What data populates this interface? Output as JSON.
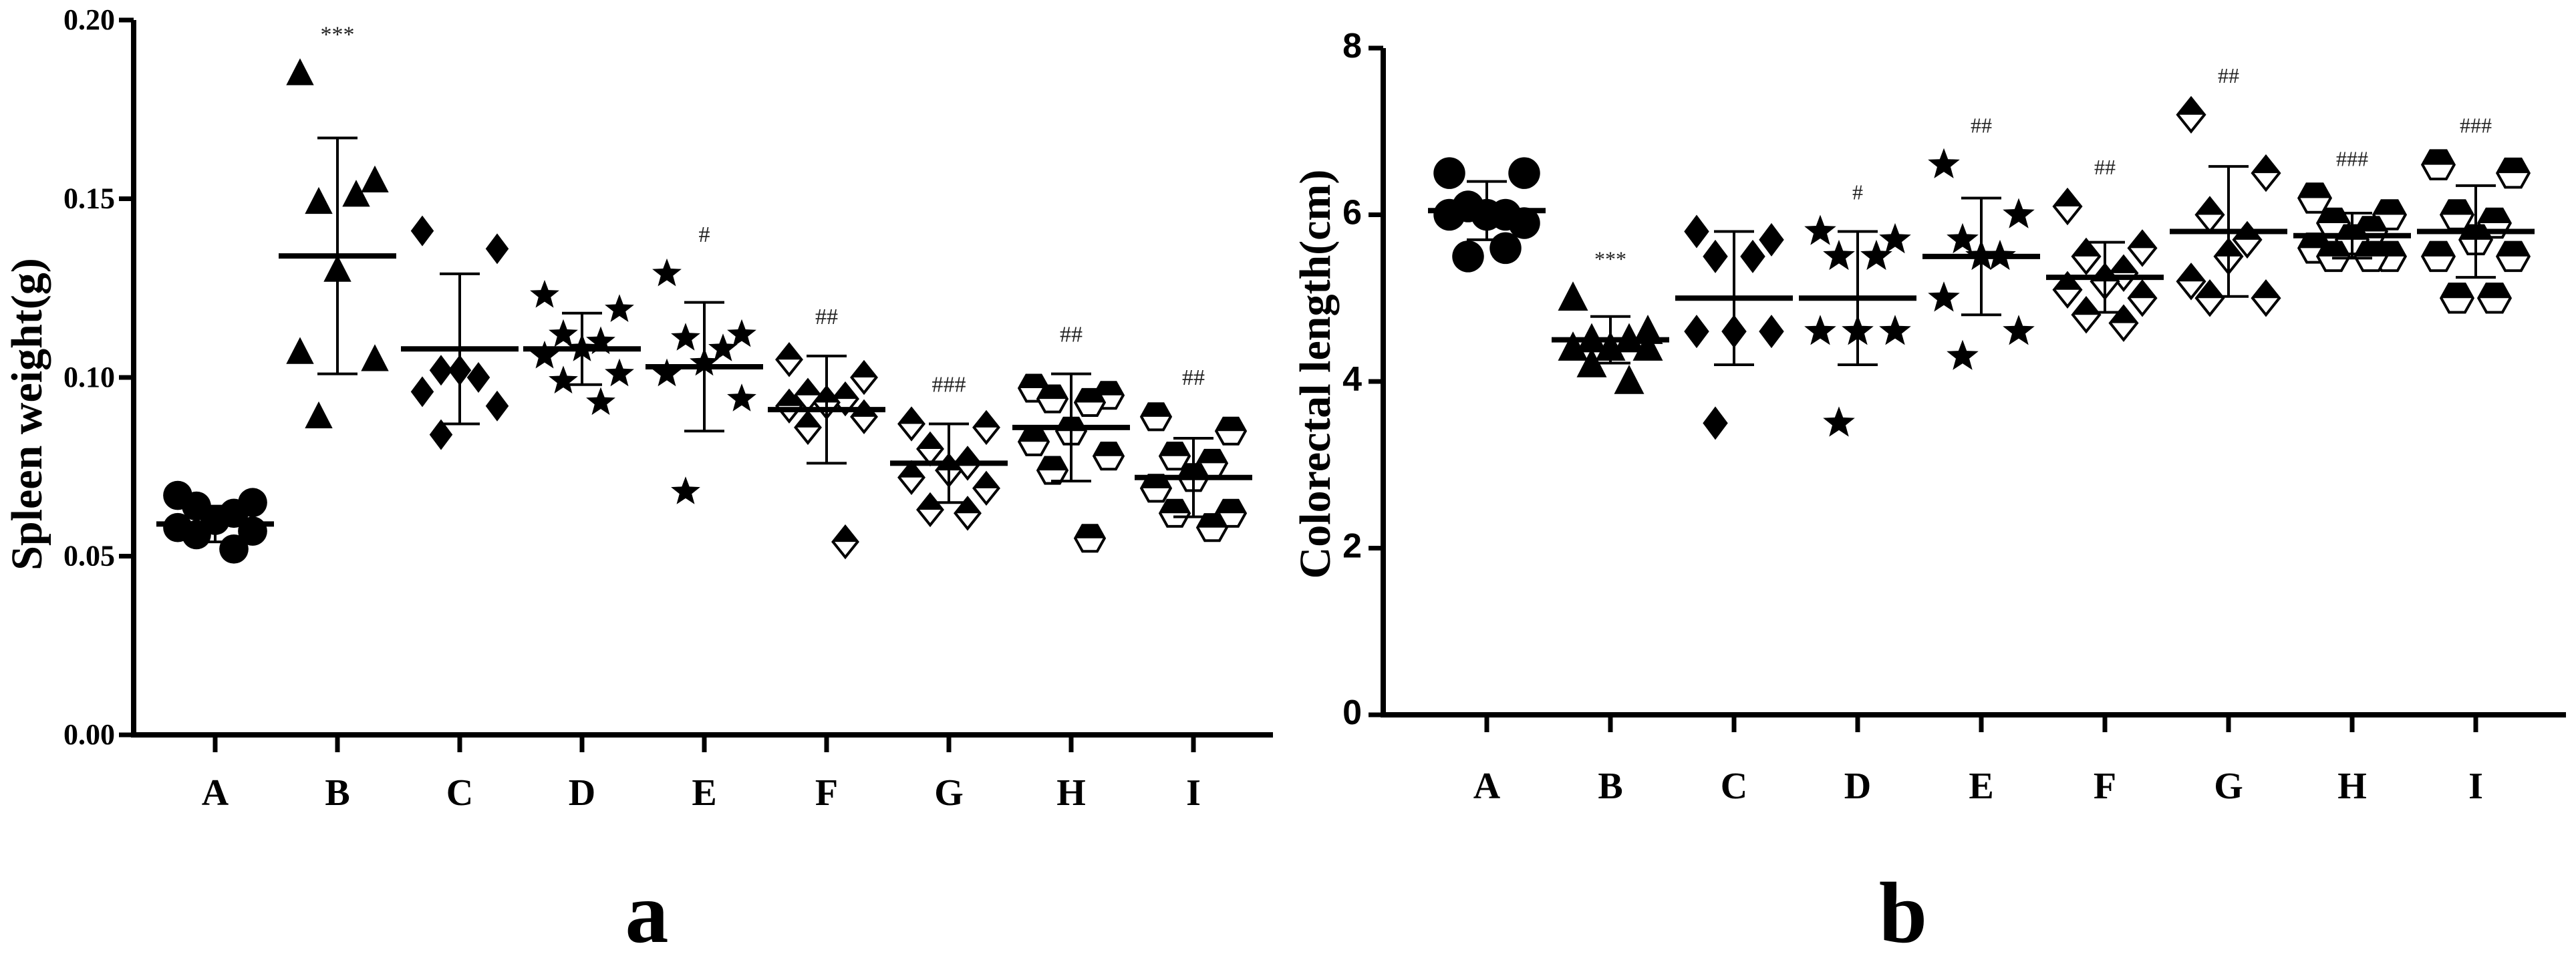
{
  "chart_data": [
    {
      "type": "scatter",
      "panel_label": "a",
      "ylabel": "Spleen weight(g)",
      "xlabel": "",
      "ylim": [
        0,
        0.2
      ],
      "yticks": [
        "0.00",
        "0.05",
        "0.10",
        "0.15",
        "0.20"
      ],
      "yticks_values": [
        0,
        0.05,
        0.1,
        0.15,
        0.2
      ],
      "categories": [
        "A",
        "B",
        "C",
        "D",
        "E",
        "F",
        "G",
        "H",
        "I"
      ],
      "groups": [
        {
          "name": "A",
          "marker": "circle",
          "mean": 0.059,
          "sd": 0.005,
          "significance": "",
          "values": [
            0.067,
            0.065,
            0.064,
            0.062,
            0.06,
            0.058,
            0.057,
            0.056,
            0.052
          ]
        },
        {
          "name": "B",
          "marker": "triangle",
          "mean": 0.134,
          "sd": 0.033,
          "significance": "***",
          "values": [
            0.185,
            0.155,
            0.149,
            0.151,
            0.13,
            0.107,
            0.105,
            0.089
          ]
        },
        {
          "name": "C",
          "marker": "diamond",
          "mean": 0.108,
          "sd": 0.021,
          "significance": "",
          "values": [
            0.141,
            0.136,
            0.102,
            0.1,
            0.102,
            0.096,
            0.092,
            0.084
          ]
        },
        {
          "name": "D",
          "marker": "star",
          "mean": 0.108,
          "sd": 0.01,
          "significance": "",
          "values": [
            0.123,
            0.119,
            0.112,
            0.11,
            0.108,
            0.106,
            0.101,
            0.099,
            0.093
          ]
        },
        {
          "name": "E",
          "marker": "star",
          "mean": 0.103,
          "sd": 0.018,
          "significance": "#",
          "values": [
            0.129,
            0.112,
            0.111,
            0.108,
            0.104,
            0.101,
            0.094,
            0.068
          ]
        },
        {
          "name": "F",
          "marker": "diamond-half",
          "mean": 0.091,
          "sd": 0.015,
          "significance": "##",
          "values": [
            0.105,
            0.1,
            0.095,
            0.094,
            0.093,
            0.092,
            0.089,
            0.086,
            0.054
          ]
        },
        {
          "name": "G",
          "marker": "diamond-half",
          "mean": 0.076,
          "sd": 0.011,
          "significance": "###",
          "values": [
            0.087,
            0.086,
            0.08,
            0.076,
            0.074,
            0.072,
            0.069,
            0.063,
            0.062
          ]
        },
        {
          "name": "H",
          "marker": "hexagon-half",
          "mean": 0.086,
          "sd": 0.015,
          "significance": "##",
          "values": [
            0.097,
            0.095,
            0.094,
            0.093,
            0.085,
            0.082,
            0.078,
            0.074,
            0.055
          ]
        },
        {
          "name": "I",
          "marker": "hexagon-half",
          "mean": 0.072,
          "sd": 0.011,
          "significance": "##",
          "values": [
            0.089,
            0.085,
            0.078,
            0.076,
            0.072,
            0.069,
            0.062,
            0.062,
            0.058
          ]
        }
      ]
    },
    {
      "type": "scatter",
      "panel_label": "b",
      "ylabel": "Colorectal length(cm)",
      "xlabel": "",
      "ylim": [
        0,
        8
      ],
      "yticks": [
        "0",
        "2",
        "4",
        "6",
        "8"
      ],
      "yticks_values": [
        0,
        2,
        4,
        6,
        8
      ],
      "categories": [
        "A",
        "B",
        "C",
        "D",
        "E",
        "F",
        "G",
        "H",
        "I"
      ],
      "groups": [
        {
          "name": "A",
          "marker": "circle",
          "mean": 6.05,
          "sd": 0.35,
          "significance": "",
          "values": [
            6.5,
            6.5,
            6.1,
            6.0,
            6.0,
            6.0,
            5.9,
            5.5,
            5.6
          ]
        },
        {
          "name": "B",
          "marker": "triangle",
          "mean": 4.5,
          "sd": 0.28,
          "significance": "***",
          "values": [
            5.0,
            4.6,
            4.5,
            4.5,
            4.4,
            4.4,
            4.4,
            4.2,
            4.0
          ]
        },
        {
          "name": "C",
          "marker": "diamond",
          "mean": 5.0,
          "sd": 0.8,
          "significance": "",
          "values": [
            5.8,
            5.7,
            5.5,
            5.5,
            4.6,
            4.6,
            4.6,
            3.5
          ]
        },
        {
          "name": "D",
          "marker": "star",
          "mean": 5.0,
          "sd": 0.8,
          "significance": "#",
          "values": [
            5.8,
            5.7,
            5.5,
            5.5,
            4.6,
            4.6,
            4.6,
            3.5
          ]
        },
        {
          "name": "E",
          "marker": "star",
          "mean": 5.5,
          "sd": 0.7,
          "significance": "##",
          "values": [
            6.6,
            6.0,
            5.7,
            5.5,
            5.5,
            5.0,
            4.6,
            4.3
          ]
        },
        {
          "name": "F",
          "marker": "diamond-half",
          "mean": 5.25,
          "sd": 0.42,
          "significance": "##",
          "values": [
            6.1,
            5.6,
            5.5,
            5.3,
            5.2,
            5.1,
            5.0,
            4.8,
            4.7
          ]
        },
        {
          "name": "G",
          "marker": "diamond-half",
          "mean": 5.8,
          "sd": 0.78,
          "significance": "##",
          "values": [
            7.2,
            6.5,
            6.0,
            5.7,
            5.5,
            5.2,
            5.0,
            5.0
          ]
        },
        {
          "name": "H",
          "marker": "hexagon-half",
          "mean": 5.75,
          "sd": 0.27,
          "significance": "###",
          "values": [
            6.2,
            6.0,
            5.9,
            5.8,
            5.7,
            5.6,
            5.5,
            5.5,
            5.5
          ]
        },
        {
          "name": "I",
          "marker": "hexagon-half",
          "mean": 5.8,
          "sd": 0.55,
          "significance": "###",
          "values": [
            6.6,
            6.5,
            6.0,
            5.9,
            5.7,
            5.5,
            5.5,
            5.0,
            5.0
          ]
        }
      ]
    }
  ]
}
